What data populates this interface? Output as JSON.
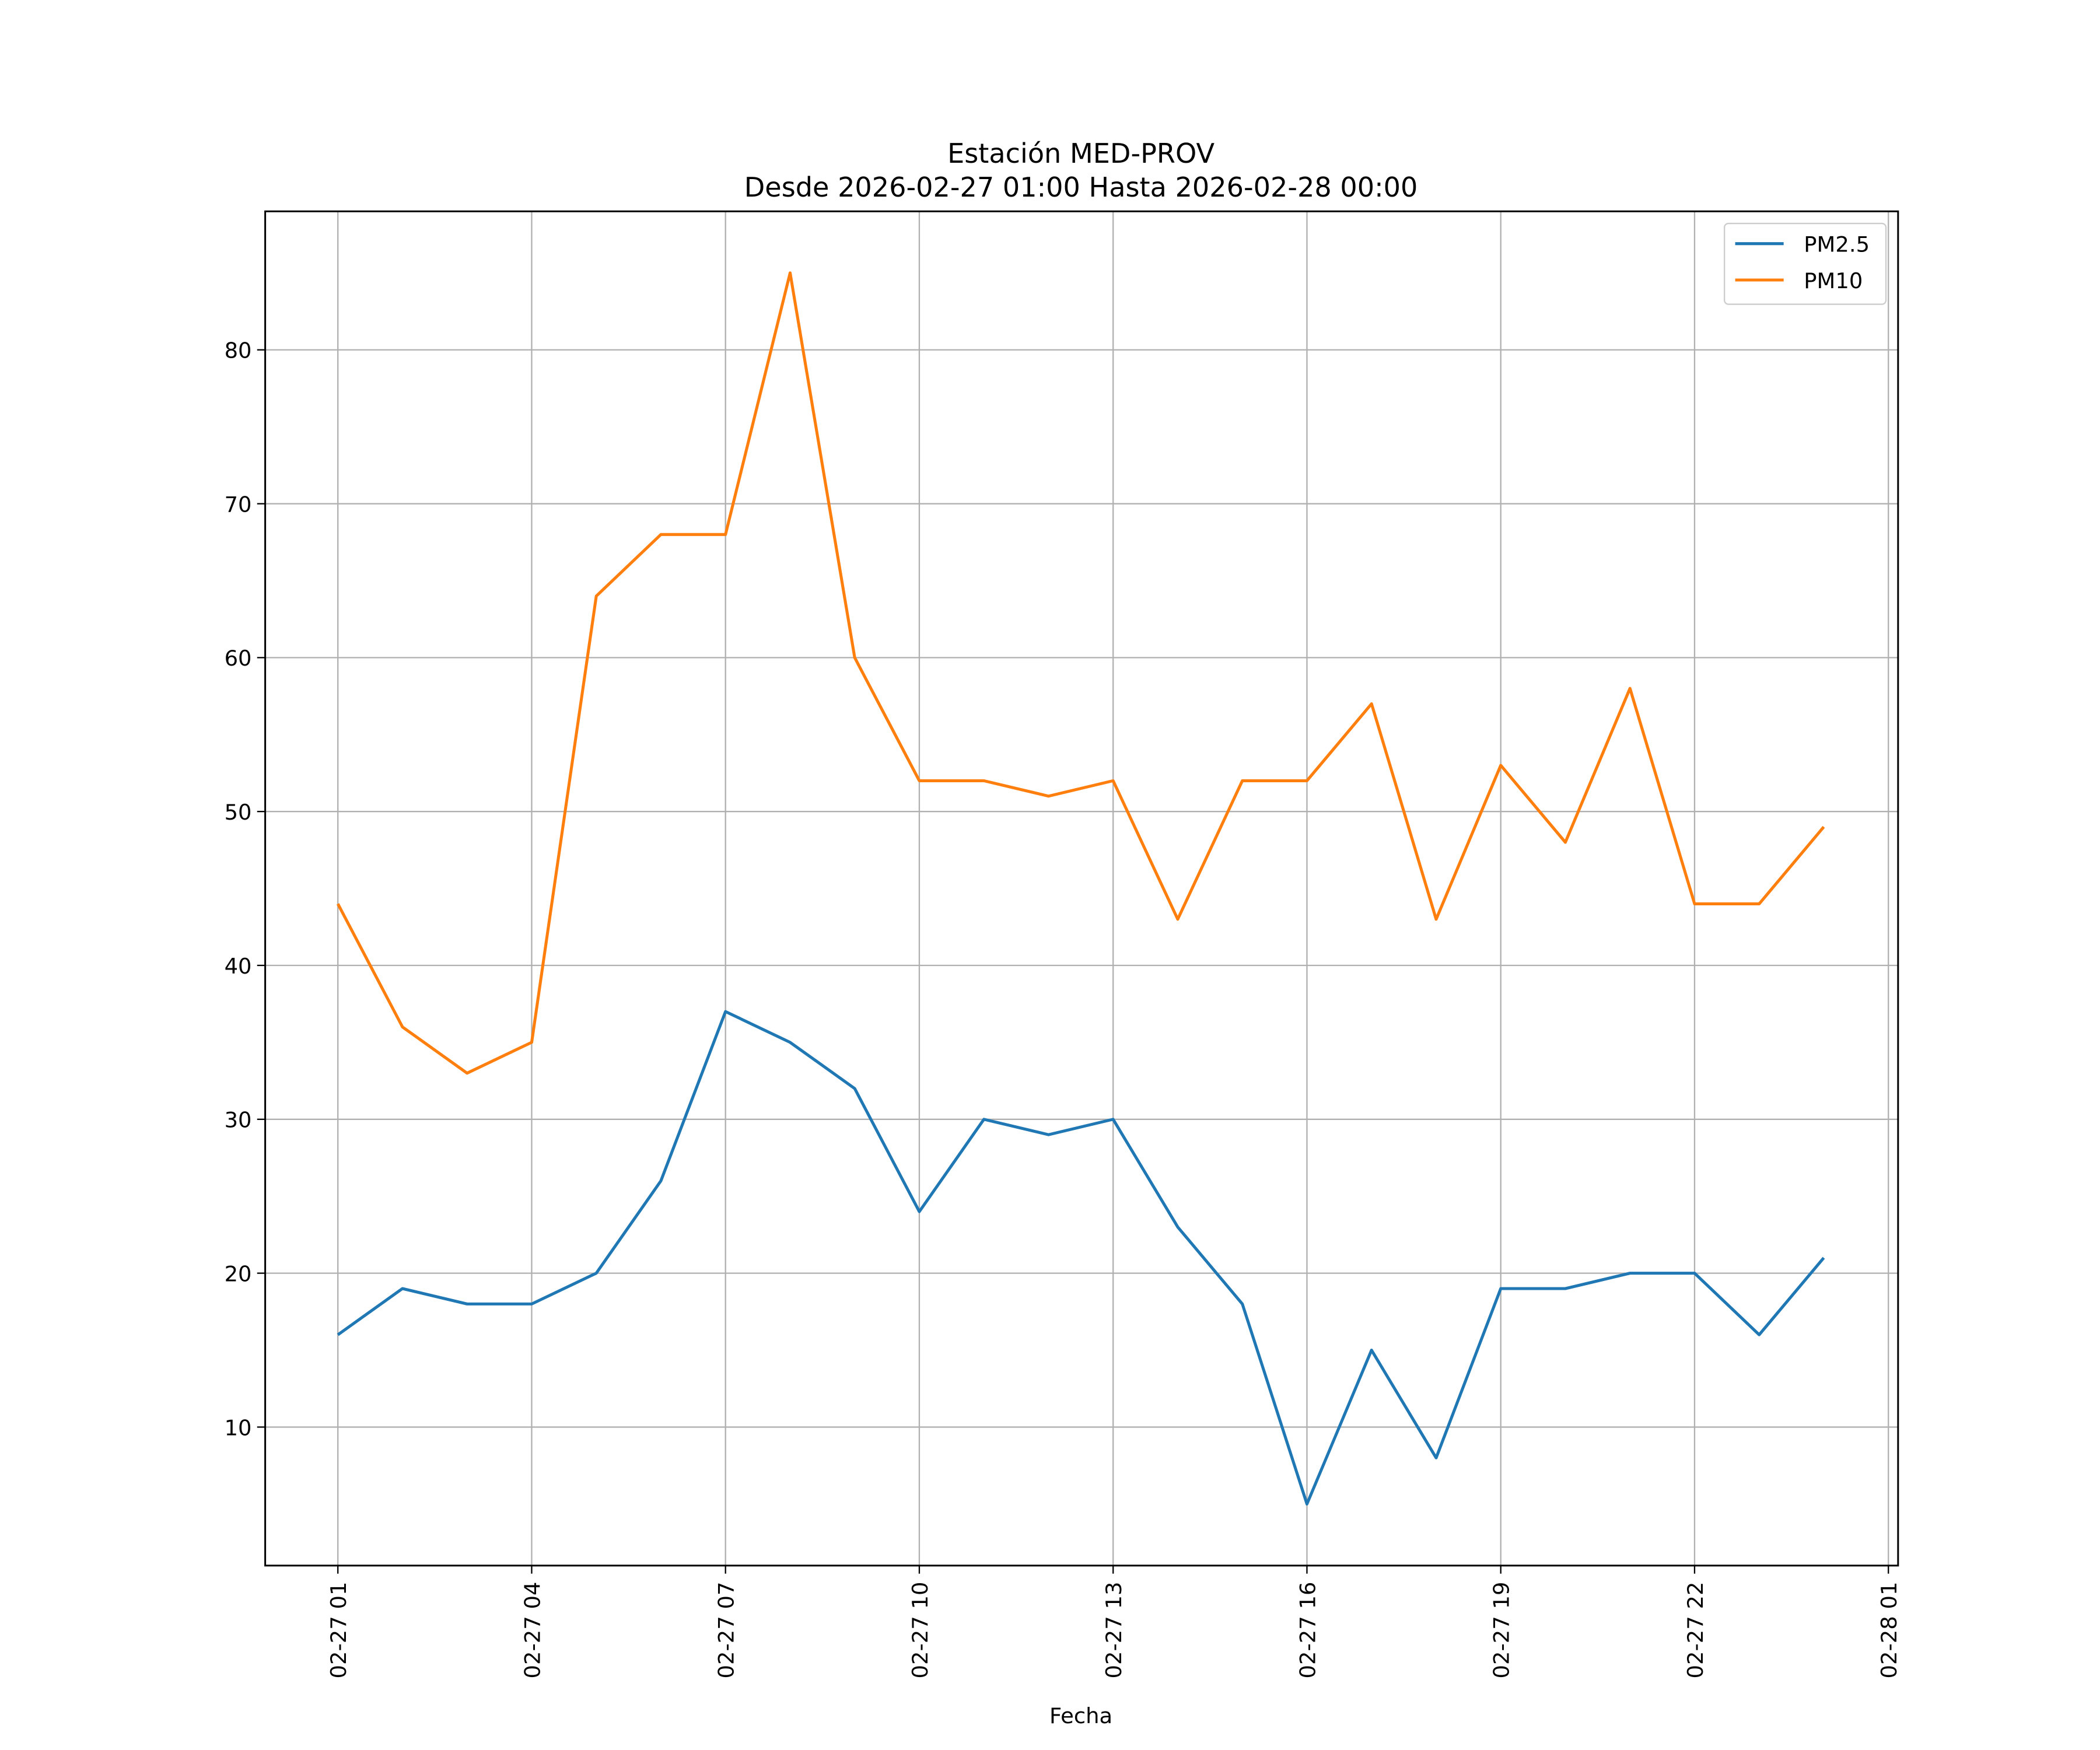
{
  "chart_data": {
    "type": "line",
    "title": "Estación MED-PROV",
    "subtitle": "Desde 2026-02-27 01:00 Hasta 2026-02-28 00:00",
    "xlabel": "Fecha",
    "ylabel": "",
    "x": [
      "02-27 01",
      "02-27 02",
      "02-27 03",
      "02-27 04",
      "02-27 05",
      "02-27 06",
      "02-27 07",
      "02-27 08",
      "02-27 09",
      "02-27 10",
      "02-27 11",
      "02-27 12",
      "02-27 13",
      "02-27 14",
      "02-27 15",
      "02-27 16",
      "02-27 17",
      "02-27 18",
      "02-27 19",
      "02-27 20",
      "02-27 21",
      "02-27 22",
      "02-27 23",
      "02-28 00"
    ],
    "series": [
      {
        "name": "PM2.5",
        "color": "#1f77b4",
        "values": [
          16,
          19,
          18,
          18,
          20,
          26,
          37,
          35,
          32,
          24,
          30,
          29,
          30,
          23,
          18,
          5,
          15,
          8,
          19,
          19,
          20,
          20,
          16,
          21
        ]
      },
      {
        "name": "PM10",
        "color": "#ff7f0e",
        "values": [
          44,
          36,
          33,
          35,
          64,
          68,
          68,
          85,
          60,
          52,
          52,
          51,
          52,
          43,
          52,
          52,
          57,
          43,
          53,
          48,
          58,
          44,
          44,
          49
        ]
      }
    ],
    "xticks": [
      {
        "label": "02-27 01",
        "hour": 0
      },
      {
        "label": "02-27 04",
        "hour": 3
      },
      {
        "label": "02-27 07",
        "hour": 6
      },
      {
        "label": "02-27 10",
        "hour": 9
      },
      {
        "label": "02-27 13",
        "hour": 12
      },
      {
        "label": "02-27 16",
        "hour": 15
      },
      {
        "label": "02-27 19",
        "hour": 18
      },
      {
        "label": "02-27 22",
        "hour": 21
      },
      {
        "label": "02-28 01",
        "hour": 24
      }
    ],
    "yticks": [
      10,
      20,
      30,
      40,
      50,
      60,
      70,
      80
    ],
    "xlim_hours": [
      -1.125,
      24.15
    ],
    "ylim": [
      1.0,
      89.0
    ],
    "grid": true,
    "legend_position": "top-right"
  }
}
